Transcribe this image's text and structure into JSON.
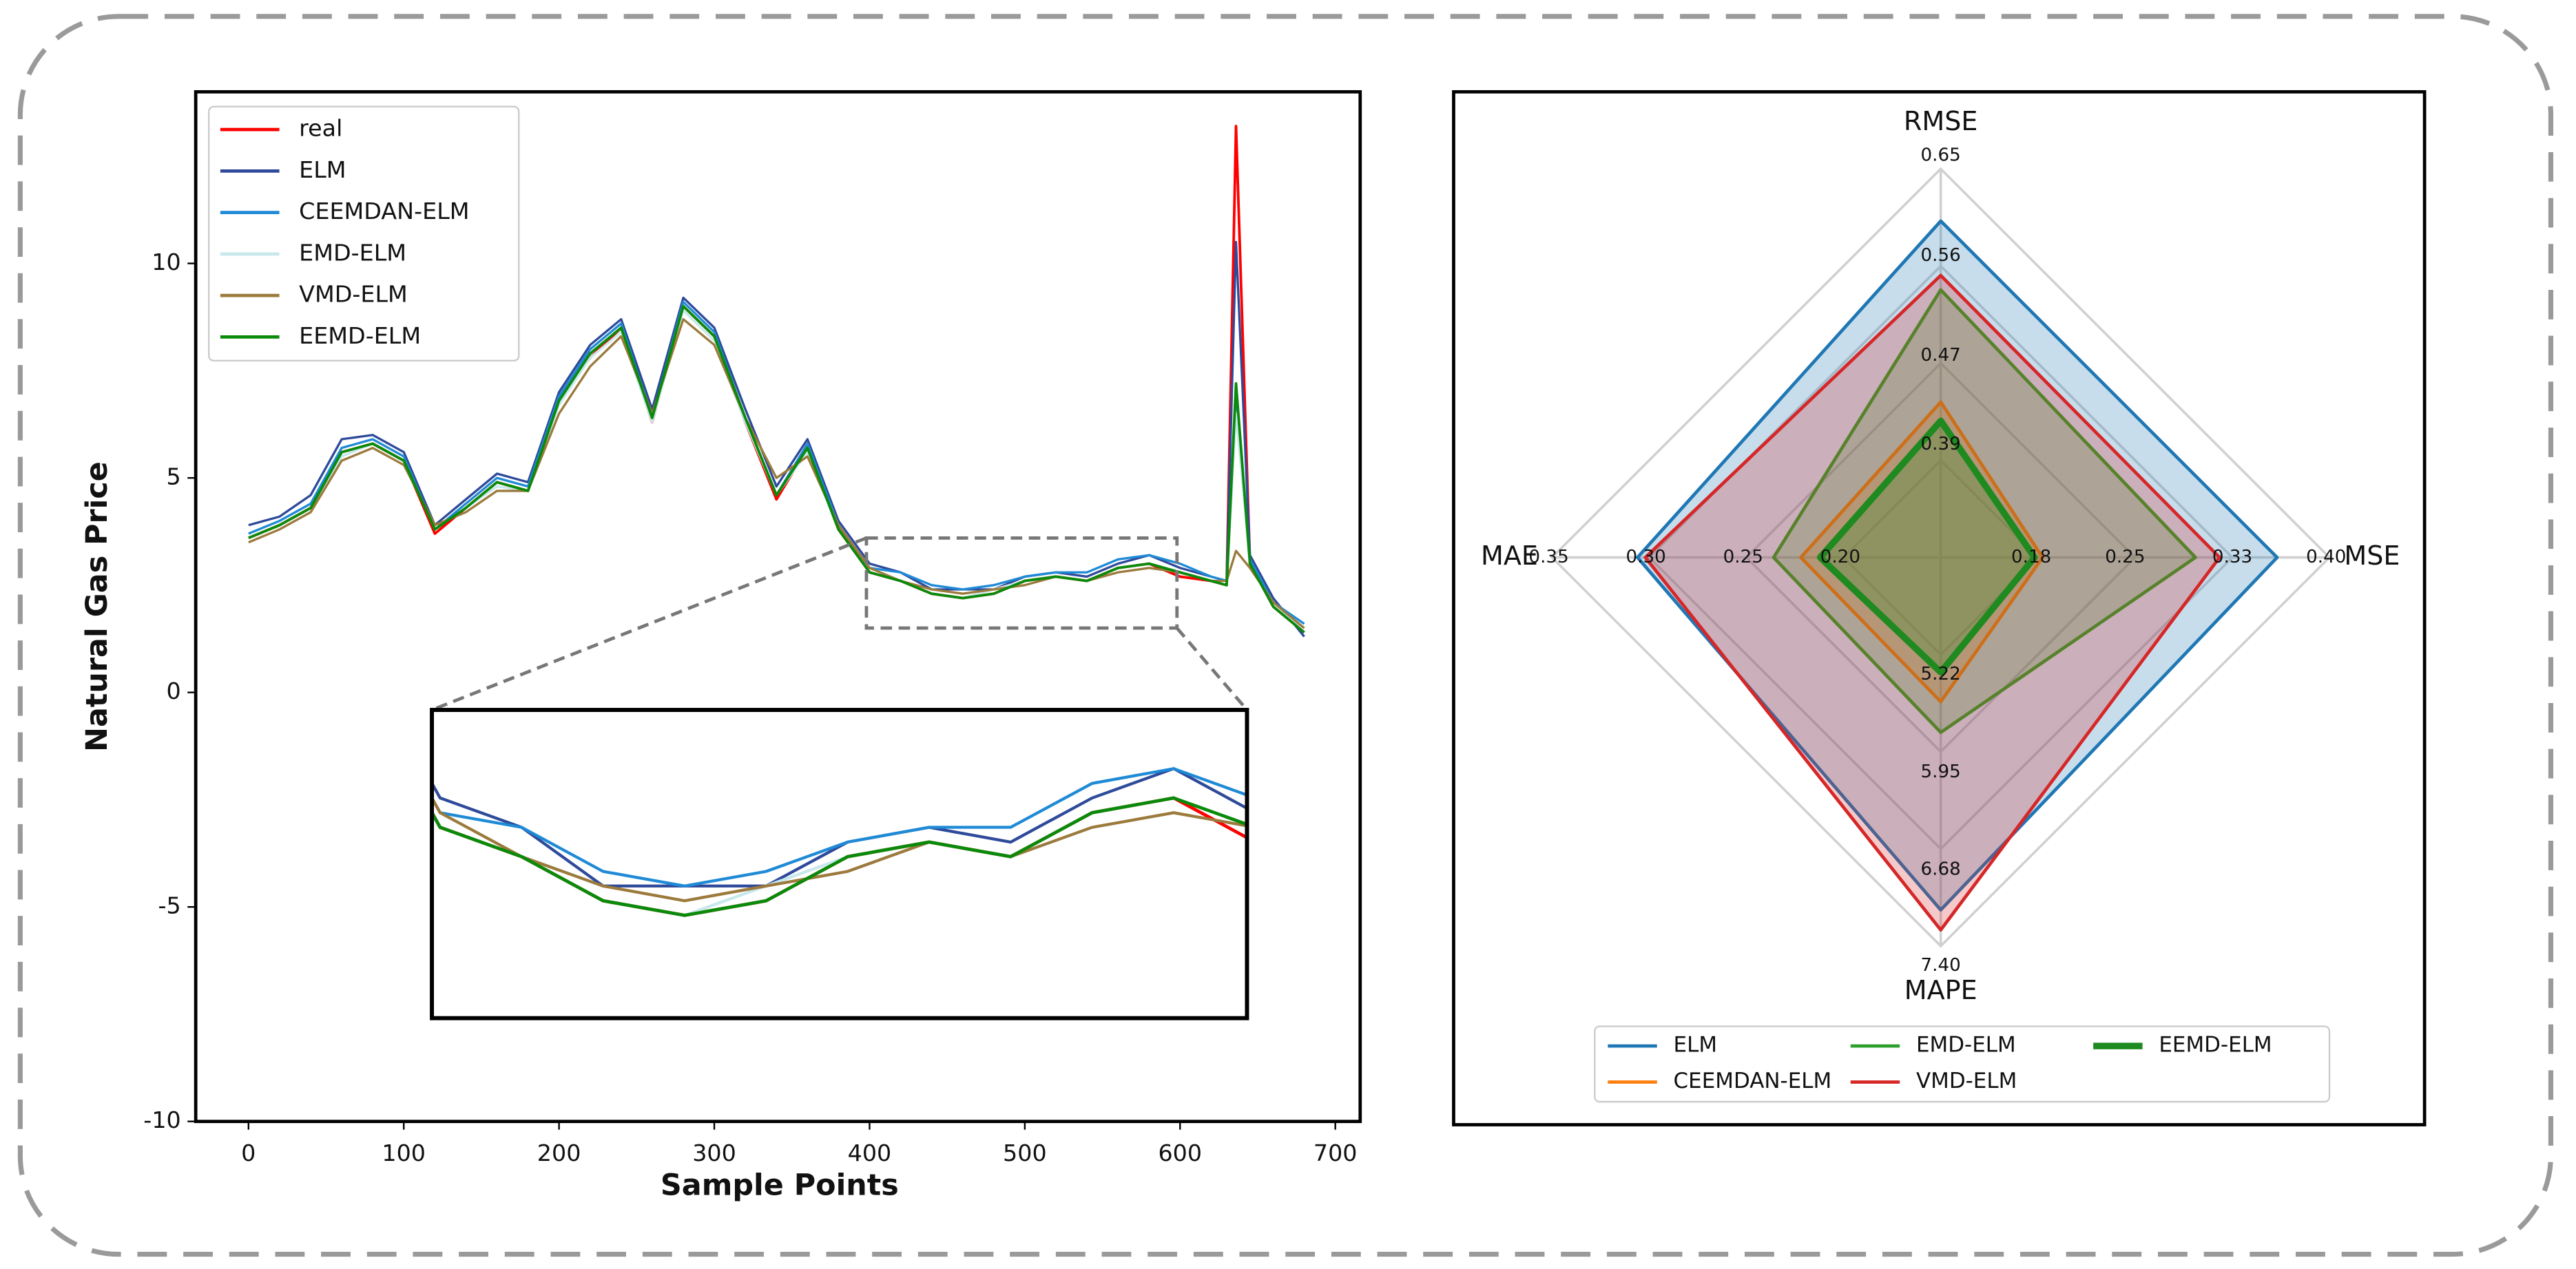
{
  "chart_data": [
    {
      "type": "line",
      "xlabel": "Sample Points",
      "ylabel": "Natural Gas Price",
      "x": [
        0,
        20,
        40,
        60,
        80,
        100,
        120,
        140,
        160,
        180,
        200,
        220,
        240,
        260,
        280,
        300,
        320,
        340,
        360,
        380,
        400,
        420,
        440,
        460,
        480,
        500,
        520,
        540,
        560,
        580,
        600,
        620,
        630,
        636,
        645,
        660,
        680
      ],
      "xlim": [
        -34,
        716
      ],
      "ylim": [
        -10,
        14
      ],
      "xticks": [
        0,
        100,
        200,
        300,
        400,
        500,
        600,
        700
      ],
      "yticks": [
        -10,
        -5,
        0,
        5,
        10
      ],
      "legend": "upper left",
      "inset": {
        "xlim": [
          398,
          598
        ],
        "ylim": [
          1.5,
          3.6
        ]
      },
      "series": [
        {
          "name": "real",
          "color": "#ff0000",
          "width": 1.6,
          "values": [
            3.6,
            3.9,
            4.3,
            5.6,
            5.8,
            5.4,
            3.7,
            4.3,
            4.9,
            4.7,
            6.8,
            7.8,
            8.5,
            6.3,
            9.0,
            8.3,
            6.3,
            4.5,
            5.7,
            3.8,
            2.8,
            2.6,
            2.3,
            2.2,
            2.3,
            2.6,
            2.7,
            2.6,
            2.9,
            3.0,
            2.7,
            2.6,
            2.5,
            13.2,
            3.0,
            2.0,
            1.4
          ]
        },
        {
          "name": "ELM",
          "color": "#2e4a9a",
          "width": 1.4,
          "values": [
            3.9,
            4.1,
            4.6,
            5.9,
            6.0,
            5.6,
            3.9,
            4.5,
            5.1,
            4.9,
            7.0,
            8.1,
            8.7,
            6.6,
            9.2,
            8.5,
            6.6,
            4.8,
            5.9,
            4.0,
            3.0,
            2.8,
            2.4,
            2.4,
            2.4,
            2.7,
            2.8,
            2.7,
            3.0,
            3.2,
            2.9,
            2.7,
            2.6,
            10.5,
            3.2,
            2.2,
            1.3
          ]
        },
        {
          "name": "CEEMDAN-ELM",
          "color": "#1f8ad6",
          "width": 1.4,
          "values": [
            3.7,
            4.0,
            4.4,
            5.7,
            5.9,
            5.5,
            3.8,
            4.4,
            5.0,
            4.8,
            6.9,
            8.0,
            8.6,
            6.4,
            9.1,
            8.4,
            6.4,
            4.6,
            5.8,
            3.9,
            2.9,
            2.8,
            2.5,
            2.4,
            2.5,
            2.7,
            2.8,
            2.8,
            3.1,
            3.2,
            3.0,
            2.7,
            2.6,
            7.0,
            3.1,
            2.1,
            1.6
          ]
        },
        {
          "name": "EMD-ELM",
          "color": "#c8e8ec",
          "width": 1.4,
          "values": [
            3.6,
            3.9,
            4.3,
            5.5,
            5.8,
            5.4,
            3.8,
            4.3,
            4.8,
            4.7,
            6.7,
            7.8,
            8.4,
            6.3,
            8.9,
            8.2,
            6.3,
            4.6,
            5.6,
            3.8,
            2.8,
            2.6,
            2.3,
            2.2,
            2.4,
            2.6,
            2.7,
            2.6,
            2.9,
            3.0,
            2.8,
            2.6,
            2.5,
            6.5,
            3.0,
            2.0,
            1.5
          ]
        },
        {
          "name": "VMD-ELM",
          "color": "#9b7a3c",
          "width": 1.4,
          "values": [
            3.5,
            3.8,
            4.2,
            5.4,
            5.7,
            5.3,
            3.9,
            4.2,
            4.7,
            4.7,
            6.5,
            7.6,
            8.3,
            6.5,
            8.7,
            8.1,
            6.4,
            5.0,
            5.5,
            3.9,
            2.9,
            2.6,
            2.4,
            2.3,
            2.4,
            2.5,
            2.7,
            2.6,
            2.8,
            2.9,
            2.8,
            2.6,
            2.6,
            3.3,
            2.9,
            2.1,
            1.5
          ]
        },
        {
          "name": "EEMD-ELM",
          "color": "#0a8a0a",
          "width": 1.6,
          "values": [
            3.6,
            3.9,
            4.3,
            5.6,
            5.8,
            5.4,
            3.8,
            4.3,
            4.9,
            4.7,
            6.8,
            7.9,
            8.5,
            6.4,
            9.0,
            8.3,
            6.4,
            4.6,
            5.7,
            3.8,
            2.8,
            2.6,
            2.3,
            2.2,
            2.3,
            2.6,
            2.7,
            2.6,
            2.9,
            3.0,
            2.8,
            2.6,
            2.5,
            7.2,
            3.0,
            2.0,
            1.4
          ]
        }
      ]
    },
    {
      "type": "radar",
      "legend": "lower center",
      "axes": [
        {
          "name": "RMSE",
          "lim": [
            0.3,
            0.65
          ],
          "ticks": [
            0.39,
            0.47,
            0.56,
            0.65
          ]
        },
        {
          "name": "MSE",
          "lim": [
            0.11,
            0.4
          ],
          "ticks": [
            0.18,
            0.25,
            0.33,
            {
              "value": 0.4,
              "label": "0.40"
            }
          ]
        },
        {
          "name": "MAPE",
          "lim": [
            4.49,
            7.4
          ],
          "ticks": [
            5.22,
            5.95,
            6.68,
            {
              "value": 7.4,
              "label": "7.40"
            }
          ]
        },
        {
          "name": "MAE",
          "lim": [
            0.15,
            0.35
          ],
          "ticks": [
            {
              "value": 0.2,
              "label": "0.20"
            },
            0.25,
            {
              "value": 0.3,
              "label": "0.30"
            },
            0.35
          ]
        }
      ],
      "series": [
        {
          "name": "ELM",
          "color": "#1f77b4",
          "width": 2,
          "values": [
            0.603,
            0.361,
            7.13,
            0.306
          ]
        },
        {
          "name": "CEEMDAN-ELM",
          "color": "#ff7f0e",
          "width": 2,
          "values": [
            0.44,
            0.186,
            5.57,
            0.222
          ]
        },
        {
          "name": "EMD-ELM",
          "color": "#2ca02c",
          "width": 2,
          "values": [
            0.541,
            0.3,
            5.8,
            0.236
          ]
        },
        {
          "name": "VMD-ELM",
          "color": "#d62728",
          "width": 2,
          "values": [
            0.554,
            0.318,
            7.28,
            0.302
          ]
        },
        {
          "name": "EEMD-ELM",
          "color": "#1f8a1f",
          "width": 4,
          "values": [
            0.423,
            0.18,
            5.35,
            0.212
          ]
        }
      ]
    }
  ]
}
